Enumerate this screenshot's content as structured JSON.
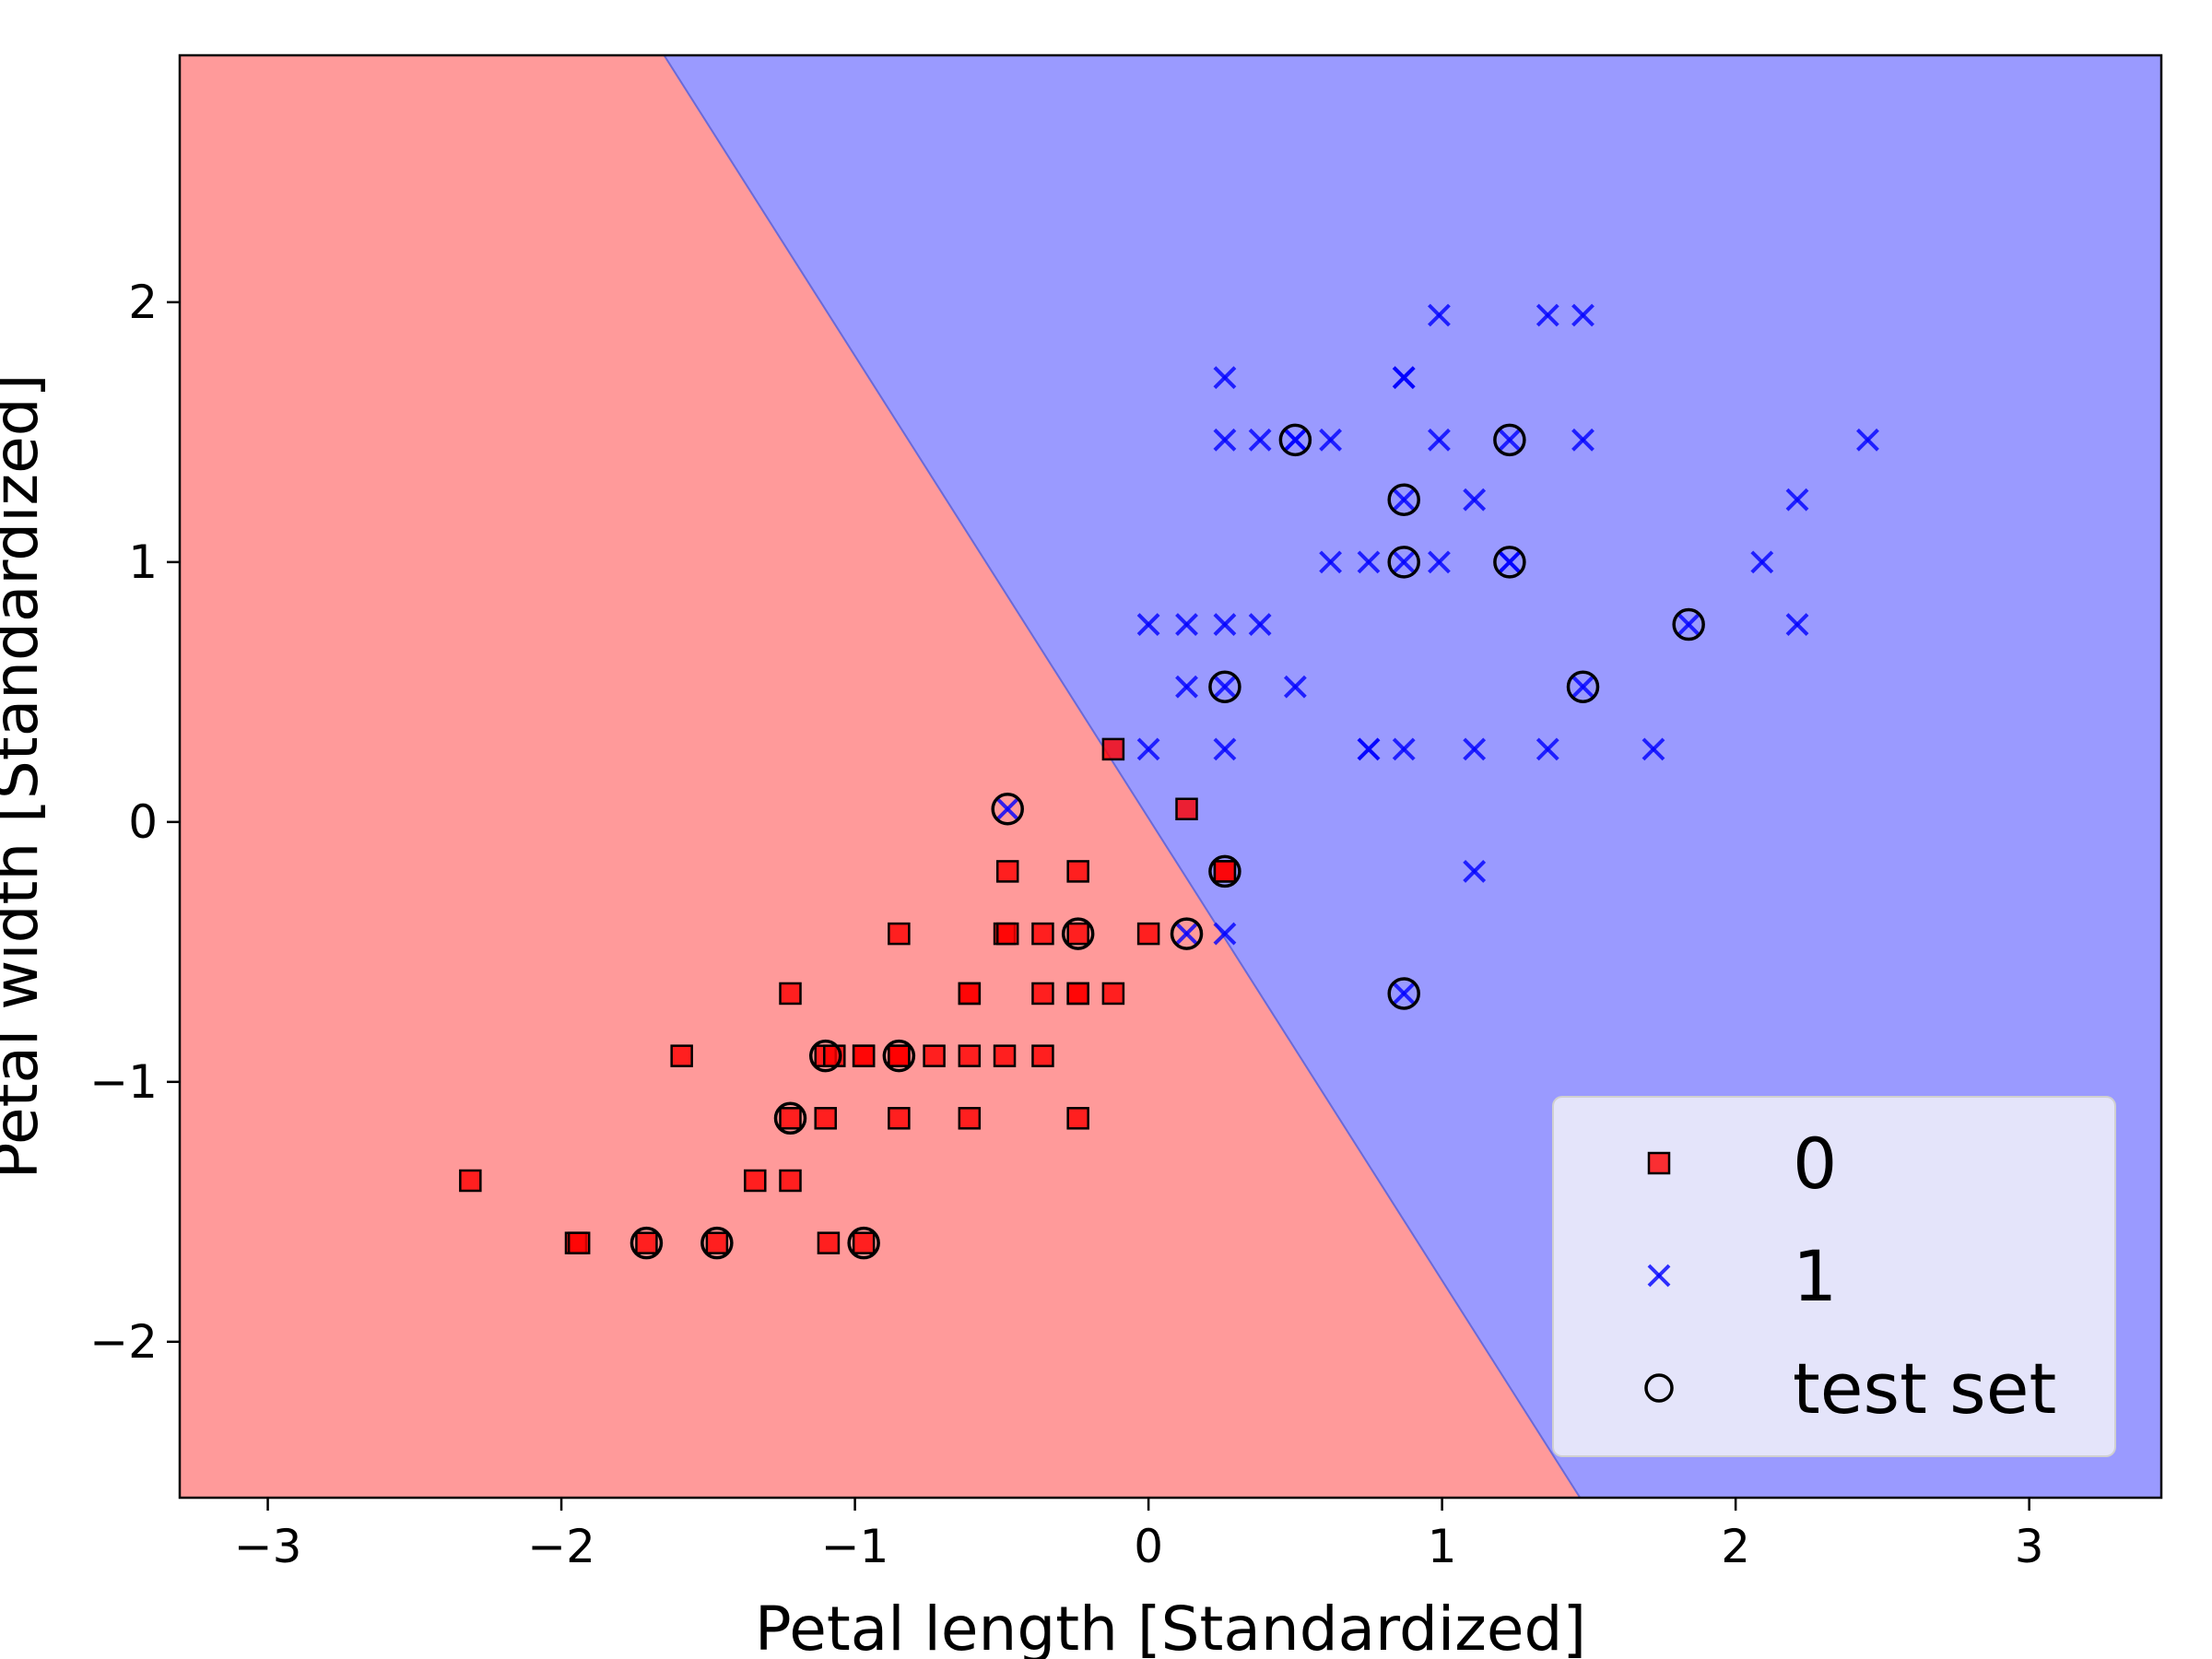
{
  "chart_data": {
    "type": "scatter",
    "title": "",
    "xlabel": "Petal length [Standardized]",
    "ylabel": "Petal width [Standardized]",
    "xlim": [
      -3.3,
      3.45
    ],
    "ylim": [
      -2.6,
      2.95
    ],
    "xticks": [
      -3,
      -2,
      -1,
      0,
      1,
      2,
      3
    ],
    "yticks": [
      -2,
      -1,
      0,
      1,
      2
    ],
    "xtick_labels": [
      "−3",
      "−2",
      "−1",
      "0",
      "1",
      "2",
      "3"
    ],
    "ytick_labels": [
      "−2",
      "−1",
      "0",
      "1",
      "2"
    ],
    "grid": false,
    "legend_position": "bottom-right",
    "decision_boundary": {
      "description": "linear boundary separating class regions",
      "points": [
        [
          -1.65,
          2.95
        ],
        [
          1.47,
          -2.6
        ]
      ],
      "regions": [
        {
          "class": "0",
          "side": "left",
          "color": "#ff9a9a"
        },
        {
          "class": "1",
          "side": "right",
          "color": "#9a9aff"
        }
      ]
    },
    "series": [
      {
        "name": "0",
        "marker": "square",
        "color": "#ff0000",
        "x": [
          -2.31,
          -1.95,
          -1.94,
          -1.71,
          -1.47,
          -1.59,
          -1.34,
          -1.22,
          -1.22,
          -1.22,
          -1.1,
          -1.1,
          -1.09,
          -1.07,
          -0.97,
          -0.97,
          -0.85,
          -0.85,
          -0.85,
          -0.85,
          -0.73,
          -0.61,
          -0.61,
          -0.61,
          -0.61,
          -0.49,
          -0.49,
          -0.48,
          -0.48,
          -0.36,
          -0.36,
          -0.36,
          -0.24,
          -0.24,
          -0.24,
          -0.24,
          -0.24,
          -0.12,
          -0.12,
          0.0,
          0.13,
          0.26,
          0.26,
          -0.97,
          -0.85
        ],
        "y": [
          -1.38,
          -1.62,
          -1.62,
          -1.62,
          -1.62,
          -0.9,
          -1.38,
          -1.38,
          -1.14,
          -0.66,
          -1.14,
          -0.9,
          -1.62,
          -0.9,
          -1.62,
          -0.9,
          -1.14,
          -0.9,
          -0.43,
          -0.9,
          -0.9,
          -1.14,
          -0.9,
          -0.66,
          -0.66,
          -0.9,
          -0.43,
          -0.19,
          -0.43,
          -0.9,
          -0.66,
          -0.43,
          -1.14,
          -0.66,
          -0.43,
          -0.19,
          -0.66,
          -0.66,
          0.28,
          -0.43,
          0.05,
          -0.19,
          -0.19,
          -0.9,
          -0.9
        ]
      },
      {
        "name": "1",
        "marker": "x",
        "color": "#0000ff",
        "x": [
          -0.48,
          0.0,
          0.0,
          0.13,
          0.13,
          0.26,
          0.26,
          0.26,
          0.26,
          0.26,
          0.26,
          0.38,
          0.38,
          0.5,
          0.5,
          0.62,
          0.62,
          0.75,
          0.75,
          0.75,
          0.87,
          0.87,
          0.87,
          0.87,
          0.87,
          0.99,
          0.99,
          0.99,
          1.11,
          1.11,
          1.11,
          1.23,
          1.23,
          1.36,
          1.36,
          1.48,
          1.48,
          1.48,
          1.72,
          1.84,
          2.09,
          2.21,
          2.21,
          2.45,
          0.5,
          0.87,
          1.23,
          0.13
        ],
        "y": [
          0.05,
          0.76,
          0.28,
          0.76,
          0.52,
          1.71,
          1.47,
          0.76,
          0.52,
          0.28,
          -0.43,
          1.47,
          0.76,
          1.47,
          0.52,
          1.47,
          1.0,
          1.0,
          0.28,
          0.28,
          1.71,
          1.71,
          1.24,
          1.0,
          0.28,
          1.95,
          1.47,
          1.0,
          1.24,
          0.28,
          -0.19,
          1.47,
          1.0,
          1.95,
          0.28,
          1.95,
          1.47,
          0.52,
          0.28,
          0.76,
          1.0,
          1.24,
          0.76,
          1.47,
          1.47,
          -0.66,
          1.0,
          -0.43
        ]
      },
      {
        "name": "test set",
        "marker": "circle-open",
        "color": "#000000",
        "x": [
          -1.71,
          -1.47,
          -0.97,
          -1.22,
          -1.1,
          -0.85,
          -0.24,
          0.26,
          0.13,
          -0.48,
          0.26,
          0.5,
          0.87,
          0.87,
          1.23,
          1.23,
          1.48,
          1.84,
          0.87
        ],
        "y": [
          -1.62,
          -1.62,
          -1.62,
          -1.14,
          -0.9,
          -0.9,
          -0.43,
          -0.19,
          -0.43,
          0.05,
          0.52,
          1.47,
          1.24,
          1.0,
          1.47,
          1.0,
          0.52,
          0.76,
          -0.66
        ]
      }
    ],
    "legend": {
      "entries": [
        {
          "label": "0",
          "marker": "square",
          "color": "#ff0000"
        },
        {
          "label": "1",
          "marker": "x",
          "color": "#0000ff"
        },
        {
          "label": "test set",
          "marker": "circle-open",
          "color": "#000000"
        }
      ]
    }
  }
}
